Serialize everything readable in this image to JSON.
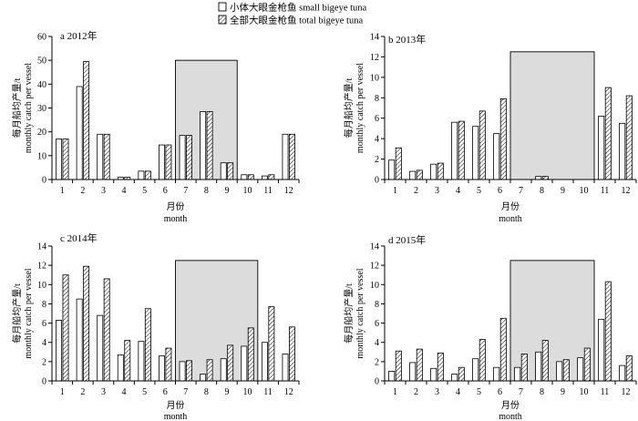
{
  "legend": [
    {
      "label": "小体大眼金枪鱼  small bigeye tuna",
      "pattern": "open"
    },
    {
      "label": "全部大眼金枪鱼  total bigeye tuna",
      "pattern": "hatched"
    }
  ],
  "chart_data": [
    {
      "type": "bar",
      "panel": "a",
      "title": "a  2012年",
      "ylabel": [
        "每月船均产量/t",
        "monthly catch per vessel"
      ],
      "xlabel": [
        "月份",
        "month"
      ],
      "categories": [
        "1",
        "2",
        "3",
        "4",
        "5",
        "6",
        "7",
        "8",
        "9",
        "10",
        "11",
        "12"
      ],
      "ylim": [
        0,
        60
      ],
      "yticks": [
        0,
        10,
        20,
        30,
        40,
        50,
        60
      ],
      "series": [
        {
          "name": "小体大眼金枪鱼  small bigeye tuna",
          "values": [
            17,
            39,
            19,
            1,
            3.5,
            14.5,
            18.5,
            28.5,
            7,
            2,
            1.5,
            19
          ]
        },
        {
          "name": "全部大眼金枪鱼  total bigeye tuna",
          "values": [
            17,
            49.5,
            19,
            1,
            3.5,
            14.5,
            18.5,
            28.5,
            7,
            2,
            2,
            19
          ]
        }
      ],
      "shaded_region": {
        "from_month": 7,
        "to_month": 9,
        "ymax": 50
      }
    },
    {
      "type": "bar",
      "panel": "b",
      "title": "b  2013年",
      "ylabel": [
        "每月船均产量/t",
        "monthly catch per vessel"
      ],
      "xlabel": [
        "月份",
        "month"
      ],
      "categories": [
        "1",
        "2",
        "3",
        "4",
        "5",
        "6",
        "7",
        "8",
        "9",
        "10",
        "11",
        "12"
      ],
      "ylim": [
        0,
        14
      ],
      "yticks": [
        0,
        2,
        4,
        6,
        8,
        10,
        12,
        14
      ],
      "series": [
        {
          "name": "小体大眼金枪鱼  small bigeye tuna",
          "values": [
            1.9,
            0.8,
            1.5,
            5.6,
            5.2,
            4.5,
            0,
            0.3,
            0,
            0,
            6.2,
            5.5
          ]
        },
        {
          "name": "全部大眼金枪鱼  total bigeye tuna",
          "values": [
            3.1,
            0.9,
            1.6,
            5.7,
            6.7,
            7.9,
            0,
            0.3,
            0,
            0,
            9.0,
            8.2
          ]
        }
      ],
      "shaded_region": {
        "from_month": 7,
        "to_month": 10,
        "ymax": 12.5
      }
    },
    {
      "type": "bar",
      "panel": "c",
      "title": "c  2014年",
      "ylabel": [
        "每月船均产量/t",
        "monthly catch per vessel"
      ],
      "xlabel": [
        "月份",
        "month"
      ],
      "categories": [
        "1",
        "2",
        "3",
        "4",
        "5",
        "6",
        "7",
        "8",
        "9",
        "10",
        "11",
        "12"
      ],
      "ylim": [
        0,
        14
      ],
      "yticks": [
        0,
        2,
        4,
        6,
        8,
        10,
        12,
        14
      ],
      "series": [
        {
          "name": "小体大眼金枪鱼  small bigeye tuna",
          "values": [
            6.3,
            8.5,
            6.8,
            2.7,
            4.1,
            2.6,
            2.0,
            0.7,
            2.3,
            3.6,
            4.0,
            2.8
          ]
        },
        {
          "name": "全部大眼金枪鱼  total bigeye tuna",
          "values": [
            11.0,
            11.9,
            10.6,
            4.2,
            7.5,
            3.4,
            2.1,
            2.2,
            3.7,
            5.5,
            7.7,
            5.6
          ]
        }
      ],
      "shaded_region": {
        "from_month": 7,
        "to_month": 10,
        "ymax": 12.5
      }
    },
    {
      "type": "bar",
      "panel": "d",
      "title": "d  2015年",
      "ylabel": [
        "每月船均产量/t",
        "monthly catch per vessel"
      ],
      "xlabel": [
        "月份",
        "month"
      ],
      "categories": [
        "1",
        "2",
        "3",
        "4",
        "5",
        "6",
        "7",
        "8",
        "9",
        "10",
        "11",
        "12"
      ],
      "ylim": [
        0,
        14
      ],
      "yticks": [
        0,
        2,
        4,
        6,
        8,
        10,
        12,
        14
      ],
      "series": [
        {
          "name": "小体大眼金枪鱼  small bigeye tuna",
          "values": [
            1.0,
            1.9,
            1.3,
            0.7,
            2.3,
            1.4,
            1.4,
            3.0,
            2.0,
            2.4,
            6.4,
            1.6
          ]
        },
        {
          "name": "全部大眼金枪鱼  total bigeye tuna",
          "values": [
            3.1,
            3.3,
            2.9,
            1.4,
            4.3,
            6.5,
            2.8,
            4.2,
            2.2,
            3.4,
            10.3,
            2.6
          ]
        }
      ],
      "shaded_region": {
        "from_month": 7,
        "to_month": 10,
        "ymax": 12.5
      }
    }
  ]
}
